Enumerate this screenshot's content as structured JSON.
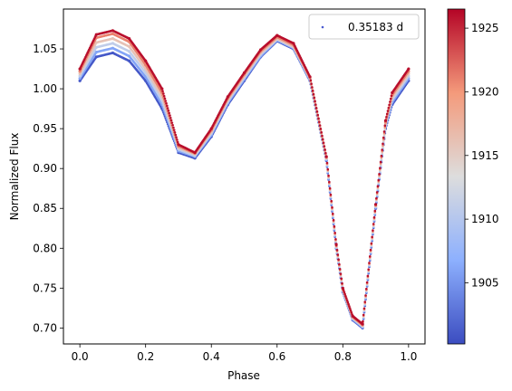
{
  "chart_data": {
    "type": "scatter",
    "title": "",
    "xlabel": "Phase",
    "ylabel": "Normalized Flux",
    "xlim": [
      -0.05,
      1.05
    ],
    "ylim": [
      0.68,
      1.1
    ],
    "x_ticks": [
      0.0,
      0.2,
      0.4,
      0.6,
      0.8,
      1.0
    ],
    "x_tick_labels": [
      "0.0",
      "0.2",
      "0.4",
      "0.6",
      "0.8",
      "1.0"
    ],
    "y_ticks": [
      0.7,
      0.75,
      0.8,
      0.85,
      0.9,
      0.95,
      1.0,
      1.05
    ],
    "y_tick_labels": [
      "0.70",
      "0.75",
      "0.80",
      "0.85",
      "0.90",
      "0.95",
      "1.00",
      "1.05"
    ],
    "grid": false,
    "legend": {
      "location": "top-right",
      "entries": [
        "0.35183 d"
      ]
    },
    "colorbar": {
      "cmap": "coolwarm",
      "range": [
        1900.2,
        1926.5
      ],
      "ticks": [
        1905,
        1910,
        1915,
        1920,
        1925
      ],
      "tick_labels": [
        "1905",
        "1910",
        "1915",
        "1920",
        "1925"
      ]
    },
    "series": [
      {
        "color_value": 1901,
        "x": [
          0.0,
          0.05,
          0.1,
          0.15,
          0.2,
          0.25,
          0.3,
          0.35,
          0.4,
          0.45,
          0.5,
          0.55,
          0.6,
          0.65,
          0.7,
          0.75,
          0.78,
          0.8,
          0.83,
          0.86,
          0.9,
          0.93,
          0.95,
          1.0
        ],
        "y": [
          1.01,
          1.04,
          1.045,
          1.035,
          1.01,
          0.975,
          0.92,
          0.913,
          0.94,
          0.98,
          1.01,
          1.04,
          1.06,
          1.05,
          1.01,
          0.91,
          0.8,
          0.745,
          0.71,
          0.7,
          0.85,
          0.95,
          0.98,
          1.01
        ]
      },
      {
        "color_value": 1906,
        "x": [
          0.0,
          0.05,
          0.1,
          0.15,
          0.2,
          0.25,
          0.3,
          0.35,
          0.4,
          0.45,
          0.5,
          0.55,
          0.6,
          0.65,
          0.7,
          0.75,
          0.78,
          0.8,
          0.83,
          0.86,
          0.9,
          0.93,
          0.95,
          1.0
        ],
        "y": [
          1.013,
          1.046,
          1.051,
          1.041,
          1.015,
          0.98,
          0.922,
          0.915,
          0.942,
          0.982,
          1.012,
          1.041,
          1.061,
          1.051,
          1.011,
          0.911,
          0.801,
          0.746,
          0.711,
          0.701,
          0.851,
          0.952,
          0.983,
          1.013
        ]
      },
      {
        "color_value": 1911,
        "x": [
          0.0,
          0.05,
          0.1,
          0.15,
          0.2,
          0.25,
          0.3,
          0.35,
          0.4,
          0.45,
          0.5,
          0.55,
          0.6,
          0.65,
          0.7,
          0.75,
          0.78,
          0.8,
          0.83,
          0.86,
          0.9,
          0.93,
          0.95,
          1.0
        ],
        "y": [
          1.016,
          1.052,
          1.057,
          1.047,
          1.02,
          0.985,
          0.924,
          0.916,
          0.944,
          0.984,
          1.014,
          1.043,
          1.062,
          1.052,
          1.012,
          0.912,
          0.802,
          0.747,
          0.712,
          0.702,
          0.852,
          0.954,
          0.986,
          1.016
        ]
      },
      {
        "color_value": 1916,
        "x": [
          0.0,
          0.05,
          0.1,
          0.15,
          0.2,
          0.25,
          0.3,
          0.35,
          0.4,
          0.45,
          0.5,
          0.55,
          0.6,
          0.65,
          0.7,
          0.75,
          0.78,
          0.8,
          0.83,
          0.86,
          0.9,
          0.93,
          0.95,
          1.0
        ],
        "y": [
          1.019,
          1.058,
          1.063,
          1.053,
          1.025,
          0.99,
          0.926,
          0.918,
          0.946,
          0.986,
          1.016,
          1.045,
          1.063,
          1.053,
          1.013,
          0.913,
          0.803,
          0.748,
          0.713,
          0.703,
          0.853,
          0.956,
          0.989,
          1.019
        ]
      },
      {
        "color_value": 1921,
        "x": [
          0.0,
          0.05,
          0.1,
          0.15,
          0.2,
          0.25,
          0.3,
          0.35,
          0.4,
          0.45,
          0.5,
          0.55,
          0.6,
          0.65,
          0.7,
          0.75,
          0.78,
          0.8,
          0.83,
          0.86,
          0.9,
          0.93,
          0.95,
          1.0
        ],
        "y": [
          1.022,
          1.064,
          1.069,
          1.059,
          1.03,
          0.995,
          0.928,
          0.919,
          0.948,
          0.988,
          1.018,
          1.047,
          1.065,
          1.055,
          1.014,
          0.914,
          0.804,
          0.749,
          0.714,
          0.704,
          0.854,
          0.958,
          0.992,
          1.022
        ]
      },
      {
        "color_value": 1926,
        "x": [
          0.0,
          0.05,
          0.1,
          0.15,
          0.2,
          0.25,
          0.3,
          0.35,
          0.4,
          0.45,
          0.5,
          0.55,
          0.6,
          0.65,
          0.7,
          0.75,
          0.78,
          0.8,
          0.83,
          0.86,
          0.9,
          0.93,
          0.95,
          1.0
        ],
        "y": [
          1.025,
          1.068,
          1.073,
          1.063,
          1.035,
          1.0,
          0.93,
          0.92,
          0.95,
          0.99,
          1.02,
          1.049,
          1.067,
          1.057,
          1.015,
          0.915,
          0.805,
          0.75,
          0.715,
          0.705,
          0.855,
          0.96,
          0.995,
          1.025
        ]
      }
    ]
  }
}
